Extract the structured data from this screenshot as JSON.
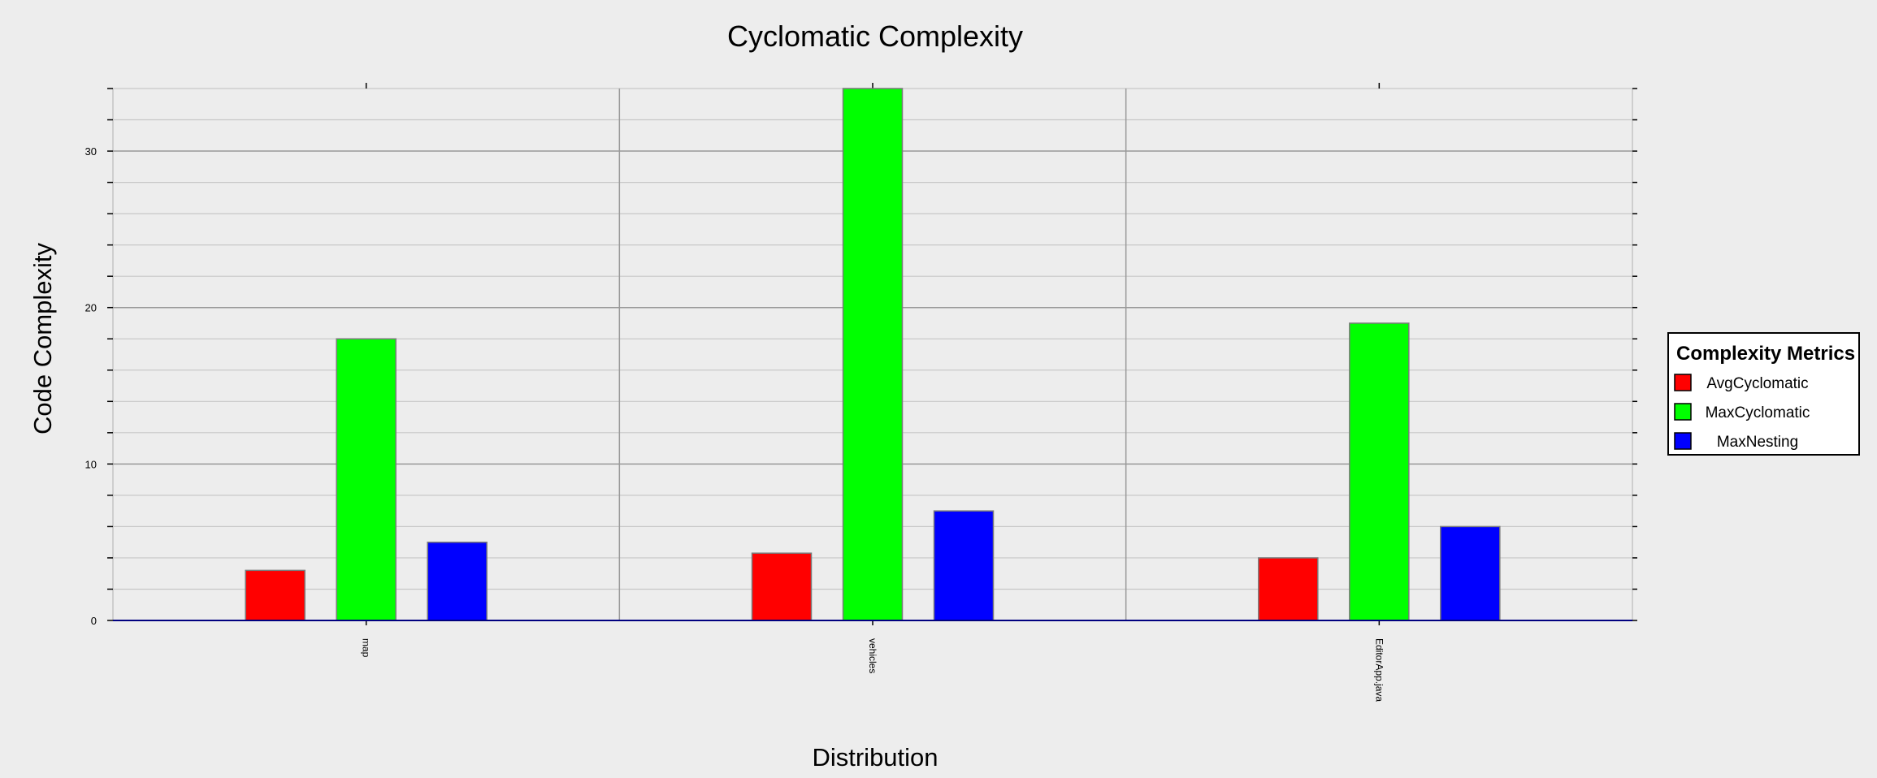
{
  "chart_data": {
    "type": "bar",
    "title": "Cyclomatic Complexity",
    "xlabel": "Distribution",
    "ylabel": "Code Complexity",
    "categories": [
      "map",
      "vehicles",
      "EditorApp.java"
    ],
    "series": [
      {
        "name": "AvgCyclomatic",
        "color": "#ff0000",
        "values": [
          3.2,
          4.3,
          4.0
        ]
      },
      {
        "name": "MaxCyclomatic",
        "color": "#00ff00",
        "values": [
          18,
          34,
          19
        ]
      },
      {
        "name": "MaxNesting",
        "color": "#0000ff",
        "values": [
          5,
          7,
          6
        ]
      }
    ],
    "ylim": [
      0,
      34
    ],
    "yticks": [
      0,
      10,
      20,
      30
    ],
    "grid": true,
    "legend": {
      "title": "Complexity Metrics",
      "position": "right"
    }
  }
}
